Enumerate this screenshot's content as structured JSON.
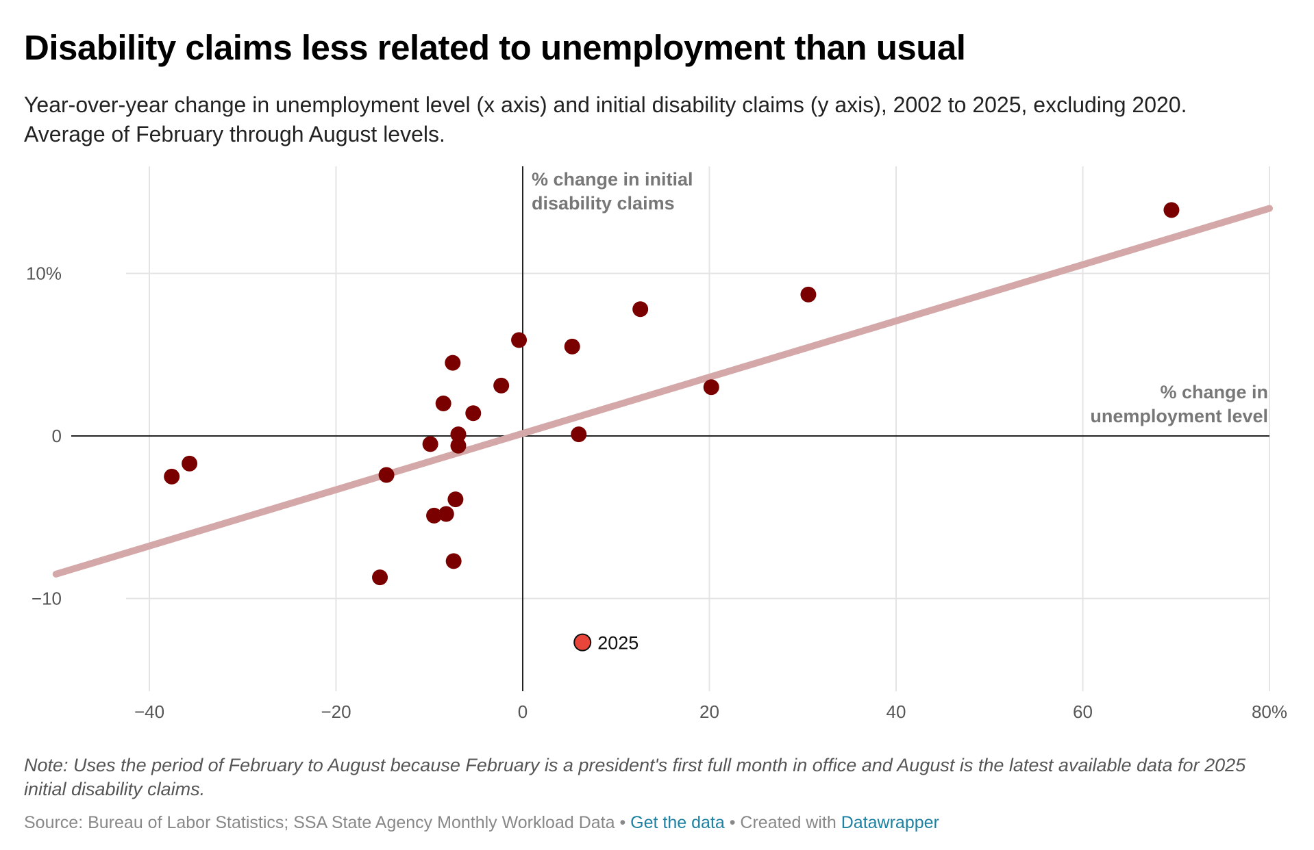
{
  "title": "Disability claims less related to unemployment than usual",
  "subtitle": "Year-over-year change in unemployment level (x axis) and initial disability claims (y axis), 2002 to 2025, excluding 2020. Average of February through August levels.",
  "note": "Note: Uses the period of February to August because February is a president's first full month in office and August is the latest available data for 2025 initial disability claims.",
  "footer": {
    "source_text": "Source: Bureau of Labor Statistics; SSA State Agency Monthly Workload Data",
    "separator": " • ",
    "get_data_label": "Get the data",
    "created_with_text": "Created with",
    "datawrapper_label": "Datawrapper"
  },
  "colors": {
    "point": "#7a0000",
    "highlight": "#e8463a",
    "trendline": "#d4a8a8",
    "grid": "#e4e4e4",
    "axis": "#222222"
  },
  "chart_data": {
    "type": "scatter",
    "xlabel": "% change in unemployment level",
    "ylabel": "% change in initial disability claims",
    "xlim": [
      -50,
      80
    ],
    "ylim": [
      -15.5,
      16.5
    ],
    "x_ticks": [
      {
        "value": -40,
        "label": "−40"
      },
      {
        "value": -20,
        "label": "−20"
      },
      {
        "value": 0,
        "label": "0"
      },
      {
        "value": 20,
        "label": "20"
      },
      {
        "value": 40,
        "label": "40"
      },
      {
        "value": 60,
        "label": "60"
      },
      {
        "value": 80,
        "label": "80%"
      }
    ],
    "y_ticks": [
      {
        "value": 10,
        "label": "10%"
      },
      {
        "value": 0,
        "label": "0"
      },
      {
        "value": -10,
        "label": "−10"
      }
    ],
    "trendline": {
      "x": [
        -50,
        80
      ],
      "y": [
        -8.5,
        14.0
      ]
    },
    "points": [
      {
        "x": 69.5,
        "y": 13.9
      },
      {
        "x": 30.6,
        "y": 8.7
      },
      {
        "x": 12.6,
        "y": 7.8
      },
      {
        "x": 5.3,
        "y": 5.5
      },
      {
        "x": -0.4,
        "y": 5.9
      },
      {
        "x": -7.5,
        "y": 4.5
      },
      {
        "x": -2.3,
        "y": 3.1
      },
      {
        "x": 20.2,
        "y": 3.0
      },
      {
        "x": -8.5,
        "y": 2.0
      },
      {
        "x": -5.3,
        "y": 1.4
      },
      {
        "x": -6.9,
        "y": 0.1
      },
      {
        "x": 6.0,
        "y": 0.1
      },
      {
        "x": -9.9,
        "y": -0.5
      },
      {
        "x": -6.9,
        "y": -0.6
      },
      {
        "x": -35.7,
        "y": -1.7
      },
      {
        "x": -37.6,
        "y": -2.5
      },
      {
        "x": -14.6,
        "y": -2.4
      },
      {
        "x": -7.2,
        "y": -3.9
      },
      {
        "x": -8.2,
        "y": -4.8
      },
      {
        "x": -9.5,
        "y": -4.9
      },
      {
        "x": -7.4,
        "y": -7.7
      },
      {
        "x": -15.3,
        "y": -8.7
      }
    ],
    "highlight": {
      "x": 6.4,
      "y": -12.7,
      "label": "2025"
    }
  }
}
